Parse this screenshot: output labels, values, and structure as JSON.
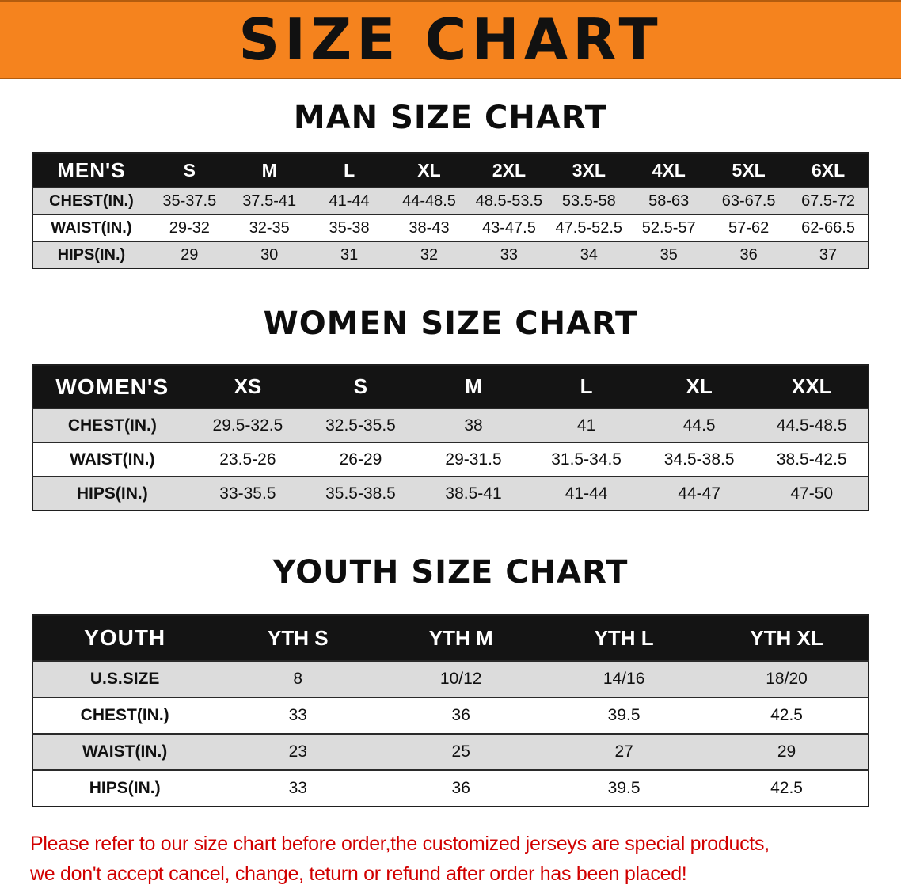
{
  "banner": {
    "title": "SIZE CHART",
    "bg_color": "#f5831e",
    "text_color": "#111111"
  },
  "sections": [
    {
      "id": "men",
      "title": "MAN SIZE CHART",
      "header": [
        "MEN'S",
        "S",
        "M",
        "L",
        "XL",
        "2XL",
        "3XL",
        "4XL",
        "5XL",
        "6XL"
      ],
      "rows": [
        {
          "label": "CHEST(IN.)",
          "values": [
            "35-37.5",
            "37.5-41",
            "41-44",
            "44-48.5",
            "48.5-53.5",
            "53.5-58",
            "58-63",
            "63-67.5",
            "67.5-72"
          ]
        },
        {
          "label": "WAIST(IN.)",
          "values": [
            "29-32",
            "32-35",
            "35-38",
            "38-43",
            "43-47.5",
            "47.5-52.5",
            "52.5-57",
            "57-62",
            "62-66.5"
          ]
        },
        {
          "label": "HIPS(IN.)",
          "values": [
            "29",
            "30",
            "31",
            "32",
            "33",
            "34",
            "35",
            "36",
            "37"
          ]
        }
      ]
    },
    {
      "id": "women",
      "title": "WOMEN SIZE CHART",
      "header": [
        "WOMEN'S",
        "XS",
        "S",
        "M",
        "L",
        "XL",
        "XXL"
      ],
      "rows": [
        {
          "label": "CHEST(IN.)",
          "values": [
            "29.5-32.5",
            "32.5-35.5",
            "38",
            "41",
            "44.5",
            "44.5-48.5"
          ]
        },
        {
          "label": "WAIST(IN.)",
          "values": [
            "23.5-26",
            "26-29",
            "29-31.5",
            "31.5-34.5",
            "34.5-38.5",
            "38.5-42.5"
          ]
        },
        {
          "label": "HIPS(IN.)",
          "values": [
            "33-35.5",
            "35.5-38.5",
            "38.5-41",
            "41-44",
            "44-47",
            "47-50"
          ]
        }
      ]
    },
    {
      "id": "youth",
      "title": "YOUTH SIZE CHART",
      "header": [
        "YOUTH",
        "YTH S",
        "YTH M",
        "YTH L",
        "YTH XL"
      ],
      "rows": [
        {
          "label": "U.S.SIZE",
          "values": [
            "8",
            "10/12",
            "14/16",
            "18/20"
          ]
        },
        {
          "label": "CHEST(IN.)",
          "values": [
            "33",
            "36",
            "39.5",
            "42.5"
          ]
        },
        {
          "label": "WAIST(IN.)",
          "values": [
            "23",
            "25",
            "27",
            "29"
          ]
        },
        {
          "label": "HIPS(IN.)",
          "values": [
            "33",
            "36",
            "39.5",
            "42.5"
          ]
        }
      ]
    }
  ],
  "disclaimer": {
    "line1": "Please refer to our size chart before order,the customized jerseys are special products,",
    "line2": "we don't accept cancel, change, teturn or refund after order has been placed!",
    "text_color": "#d10000"
  },
  "colors": {
    "table_header_bg": "#141414",
    "table_header_text": "#ffffff",
    "row_shade": "#dcdcdc",
    "border": "#1f1f1f"
  }
}
